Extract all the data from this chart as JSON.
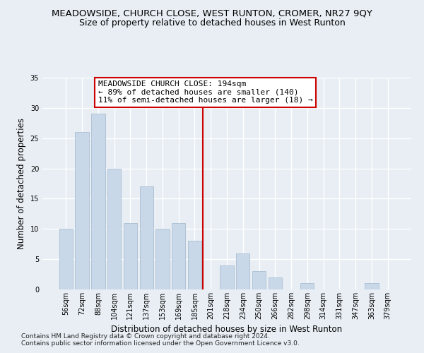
{
  "title": "MEADOWSIDE, CHURCH CLOSE, WEST RUNTON, CROMER, NR27 9QY",
  "subtitle": "Size of property relative to detached houses in West Runton",
  "xlabel": "Distribution of detached houses by size in West Runton",
  "ylabel": "Number of detached properties",
  "bar_color": "#c8d8e8",
  "bar_edge_color": "#a0b8cc",
  "bar_categories": [
    "56sqm",
    "72sqm",
    "88sqm",
    "104sqm",
    "121sqm",
    "137sqm",
    "153sqm",
    "169sqm",
    "185sqm",
    "201sqm",
    "218sqm",
    "234sqm",
    "250sqm",
    "266sqm",
    "282sqm",
    "298sqm",
    "314sqm",
    "331sqm",
    "347sqm",
    "363sqm",
    "379sqm"
  ],
  "bar_values": [
    10,
    26,
    29,
    20,
    11,
    17,
    10,
    11,
    8,
    0,
    4,
    6,
    3,
    2,
    0,
    1,
    0,
    0,
    0,
    1,
    0
  ],
  "ylim": [
    0,
    35
  ],
  "yticks": [
    0,
    5,
    10,
    15,
    20,
    25,
    30,
    35
  ],
  "vline_x": 8.5,
  "vline_color": "#cc0000",
  "annotation_text": "MEADOWSIDE CHURCH CLOSE: 194sqm\n← 89% of detached houses are smaller (140)\n11% of semi-detached houses are larger (18) →",
  "annotation_box_color": "#ffffff",
  "annotation_box_edge": "#cc0000",
  "footer_line1": "Contains HM Land Registry data © Crown copyright and database right 2024.",
  "footer_line2": "Contains public sector information licensed under the Open Government Licence v3.0.",
  "background_color": "#e8eef4",
  "grid_color": "#ffffff",
  "title_fontsize": 9.5,
  "subtitle_fontsize": 9,
  "axis_label_fontsize": 8.5,
  "tick_fontsize": 7,
  "annotation_fontsize": 8,
  "footer_fontsize": 6.5
}
